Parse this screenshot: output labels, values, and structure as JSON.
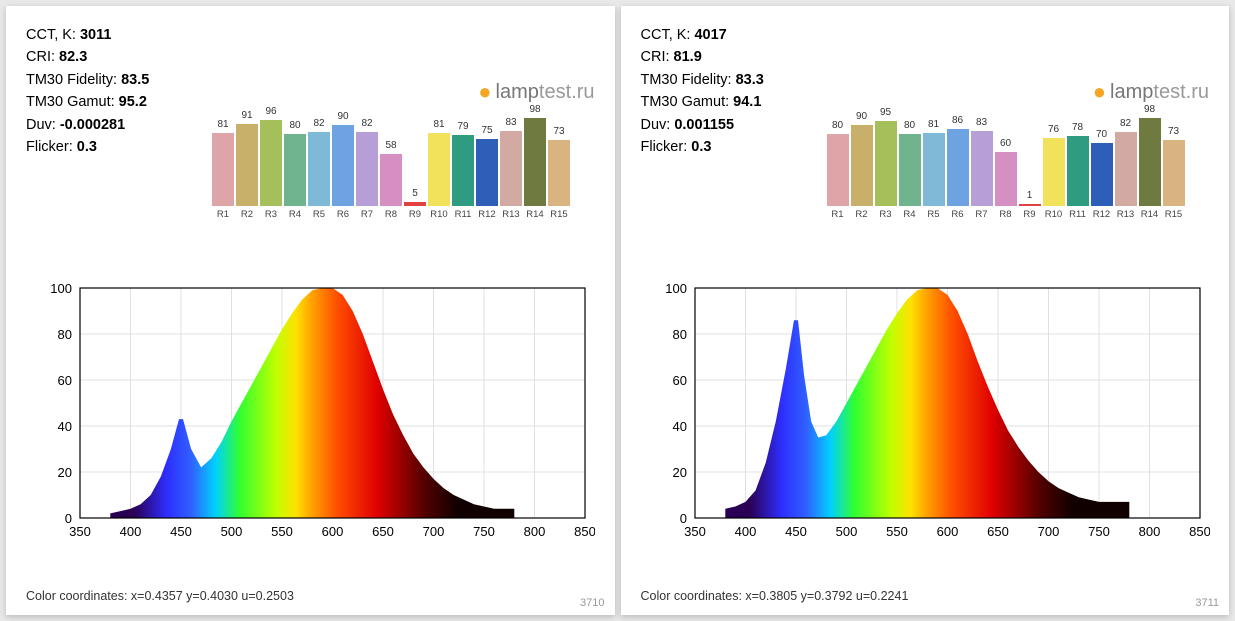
{
  "logo": {
    "brand": "lamp",
    "suffix": "test",
    "tld": ".ru"
  },
  "panels": [
    {
      "id": "3710",
      "stats": {
        "cct_label": "CCT, K:",
        "cct": "3011",
        "cri_label": "CRI:",
        "cri": "82.3",
        "fid_label": "TM30 Fidelity:",
        "fid": "83.5",
        "gam_label": "TM30 Gamut:",
        "gam": "95.2",
        "duv_label": "Duv:",
        "duv": "-0.000281",
        "flk_label": "Flicker:",
        "flk": "0.3"
      },
      "cri_bars": {
        "max": 100,
        "bars": [
          {
            "label": "R1",
            "value": 81,
            "color": "#dfa4a8"
          },
          {
            "label": "R2",
            "value": 91,
            "color": "#c8b06a"
          },
          {
            "label": "R3",
            "value": 96,
            "color": "#a5c05a"
          },
          {
            "label": "R4",
            "value": 80,
            "color": "#6fb48e"
          },
          {
            "label": "R5",
            "value": 82,
            "color": "#7fb9d8"
          },
          {
            "label": "R6",
            "value": 90,
            "color": "#6da3e0"
          },
          {
            "label": "R7",
            "value": 82,
            "color": "#b89ed6"
          },
          {
            "label": "R8",
            "value": 58,
            "color": "#d68fc3"
          },
          {
            "label": "R9",
            "value": 5,
            "color": "#e04040"
          },
          {
            "label": "R10",
            "value": 81,
            "color": "#f2e15a"
          },
          {
            "label": "R11",
            "value": 79,
            "color": "#2f9c82"
          },
          {
            "label": "R12",
            "value": 75,
            "color": "#2e5fb8"
          },
          {
            "label": "R13",
            "value": 83,
            "color": "#d2a9a3"
          },
          {
            "label": "R14",
            "value": 98,
            "color": "#6e7a3f"
          },
          {
            "label": "R15",
            "value": 73,
            "color": "#d9b480"
          }
        ]
      },
      "spectrum": {
        "x_range": [
          350,
          850
        ],
        "y_range": [
          0,
          100
        ],
        "x_ticks": [
          350,
          400,
          450,
          500,
          550,
          600,
          650,
          700,
          750,
          800,
          850
        ],
        "y_ticks": [
          0,
          20,
          40,
          60,
          80,
          100
        ],
        "grid_color": "#e0e0e0",
        "axis_color": "#000000",
        "curve": [
          [
            380,
            2
          ],
          [
            390,
            3
          ],
          [
            400,
            4
          ],
          [
            410,
            6
          ],
          [
            420,
            10
          ],
          [
            430,
            18
          ],
          [
            440,
            30
          ],
          [
            448,
            43
          ],
          [
            452,
            43
          ],
          [
            460,
            30
          ],
          [
            470,
            22
          ],
          [
            480,
            26
          ],
          [
            490,
            33
          ],
          [
            500,
            42
          ],
          [
            510,
            50
          ],
          [
            520,
            58
          ],
          [
            530,
            66
          ],
          [
            540,
            74
          ],
          [
            550,
            82
          ],
          [
            560,
            89
          ],
          [
            570,
            95
          ],
          [
            580,
            99
          ],
          [
            590,
            100
          ],
          [
            600,
            100
          ],
          [
            610,
            97
          ],
          [
            620,
            90
          ],
          [
            630,
            80
          ],
          [
            640,
            68
          ],
          [
            650,
            56
          ],
          [
            660,
            45
          ],
          [
            670,
            36
          ],
          [
            680,
            28
          ],
          [
            690,
            22
          ],
          [
            700,
            17
          ],
          [
            710,
            13
          ],
          [
            720,
            10
          ],
          [
            730,
            8
          ],
          [
            740,
            6
          ],
          [
            750,
            5
          ],
          [
            760,
            4
          ],
          [
            770,
            4
          ],
          [
            780,
            4
          ]
        ],
        "gradient_stops": [
          {
            "x": 380,
            "c": "#2a0055"
          },
          {
            "x": 420,
            "c": "#2e2eff"
          },
          {
            "x": 450,
            "c": "#3060ff"
          },
          {
            "x": 480,
            "c": "#00d0ff"
          },
          {
            "x": 510,
            "c": "#30ff30"
          },
          {
            "x": 555,
            "c": "#c0ff00"
          },
          {
            "x": 580,
            "c": "#ffe000"
          },
          {
            "x": 600,
            "c": "#ffa000"
          },
          {
            "x": 630,
            "c": "#ff5000"
          },
          {
            "x": 680,
            "c": "#e00000"
          },
          {
            "x": 740,
            "c": "#500000"
          },
          {
            "x": 780,
            "c": "#100000"
          }
        ]
      },
      "coords_label": "Color coordinates: x=0.4357 y=0.4030 u=0.2503"
    },
    {
      "id": "3711",
      "stats": {
        "cct_label": "CCT, K:",
        "cct": "4017",
        "cri_label": "CRI:",
        "cri": "81.9",
        "fid_label": "TM30 Fidelity:",
        "fid": "83.3",
        "gam_label": "TM30 Gamut:",
        "gam": "94.1",
        "duv_label": "Duv:",
        "duv": "0.001155",
        "flk_label": "Flicker:",
        "flk": "0.3"
      },
      "cri_bars": {
        "max": 100,
        "bars": [
          {
            "label": "R1",
            "value": 80,
            "color": "#dfa4a8"
          },
          {
            "label": "R2",
            "value": 90,
            "color": "#c8b06a"
          },
          {
            "label": "R3",
            "value": 95,
            "color": "#a5c05a"
          },
          {
            "label": "R4",
            "value": 80,
            "color": "#6fb48e"
          },
          {
            "label": "R5",
            "value": 81,
            "color": "#7fb9d8"
          },
          {
            "label": "R6",
            "value": 86,
            "color": "#6da3e0"
          },
          {
            "label": "R7",
            "value": 83,
            "color": "#b89ed6"
          },
          {
            "label": "R8",
            "value": 60,
            "color": "#d68fc3"
          },
          {
            "label": "R9",
            "value": 1,
            "color": "#e04040"
          },
          {
            "label": "R10",
            "value": 76,
            "color": "#f2e15a"
          },
          {
            "label": "R11",
            "value": 78,
            "color": "#2f9c82"
          },
          {
            "label": "R12",
            "value": 70,
            "color": "#2e5fb8"
          },
          {
            "label": "R13",
            "value": 82,
            "color": "#d2a9a3"
          },
          {
            "label": "R14",
            "value": 98,
            "color": "#6e7a3f"
          },
          {
            "label": "R15",
            "value": 73,
            "color": "#d9b480"
          }
        ]
      },
      "spectrum": {
        "x_range": [
          350,
          850
        ],
        "y_range": [
          0,
          100
        ],
        "x_ticks": [
          350,
          400,
          450,
          500,
          550,
          600,
          650,
          700,
          750,
          800,
          850
        ],
        "y_ticks": [
          0,
          20,
          40,
          60,
          80,
          100
        ],
        "grid_color": "#e0e0e0",
        "axis_color": "#000000",
        "curve": [
          [
            380,
            4
          ],
          [
            390,
            5
          ],
          [
            400,
            7
          ],
          [
            410,
            12
          ],
          [
            420,
            24
          ],
          [
            430,
            42
          ],
          [
            440,
            65
          ],
          [
            448,
            86
          ],
          [
            452,
            86
          ],
          [
            458,
            62
          ],
          [
            465,
            42
          ],
          [
            472,
            35
          ],
          [
            480,
            36
          ],
          [
            490,
            42
          ],
          [
            500,
            50
          ],
          [
            510,
            58
          ],
          [
            520,
            66
          ],
          [
            530,
            74
          ],
          [
            540,
            82
          ],
          [
            550,
            89
          ],
          [
            560,
            95
          ],
          [
            570,
            99
          ],
          [
            580,
            100
          ],
          [
            590,
            100
          ],
          [
            600,
            97
          ],
          [
            610,
            90
          ],
          [
            620,
            80
          ],
          [
            630,
            68
          ],
          [
            640,
            57
          ],
          [
            650,
            47
          ],
          [
            660,
            38
          ],
          [
            670,
            31
          ],
          [
            680,
            25
          ],
          [
            690,
            20
          ],
          [
            700,
            16
          ],
          [
            710,
            13
          ],
          [
            720,
            11
          ],
          [
            730,
            9
          ],
          [
            740,
            8
          ],
          [
            750,
            7
          ],
          [
            760,
            7
          ],
          [
            770,
            7
          ],
          [
            780,
            7
          ]
        ],
        "gradient_stops": [
          {
            "x": 380,
            "c": "#2a0055"
          },
          {
            "x": 420,
            "c": "#2e2eff"
          },
          {
            "x": 450,
            "c": "#3060ff"
          },
          {
            "x": 480,
            "c": "#00d0ff"
          },
          {
            "x": 510,
            "c": "#30ff30"
          },
          {
            "x": 555,
            "c": "#c0ff00"
          },
          {
            "x": 580,
            "c": "#ffe000"
          },
          {
            "x": 600,
            "c": "#ffa000"
          },
          {
            "x": 630,
            "c": "#ff5000"
          },
          {
            "x": 680,
            "c": "#e00000"
          },
          {
            "x": 740,
            "c": "#500000"
          },
          {
            "x": 780,
            "c": "#100000"
          }
        ]
      },
      "coords_label": "Color coordinates: x=0.3805 y=0.3792 u=0.2241"
    }
  ]
}
